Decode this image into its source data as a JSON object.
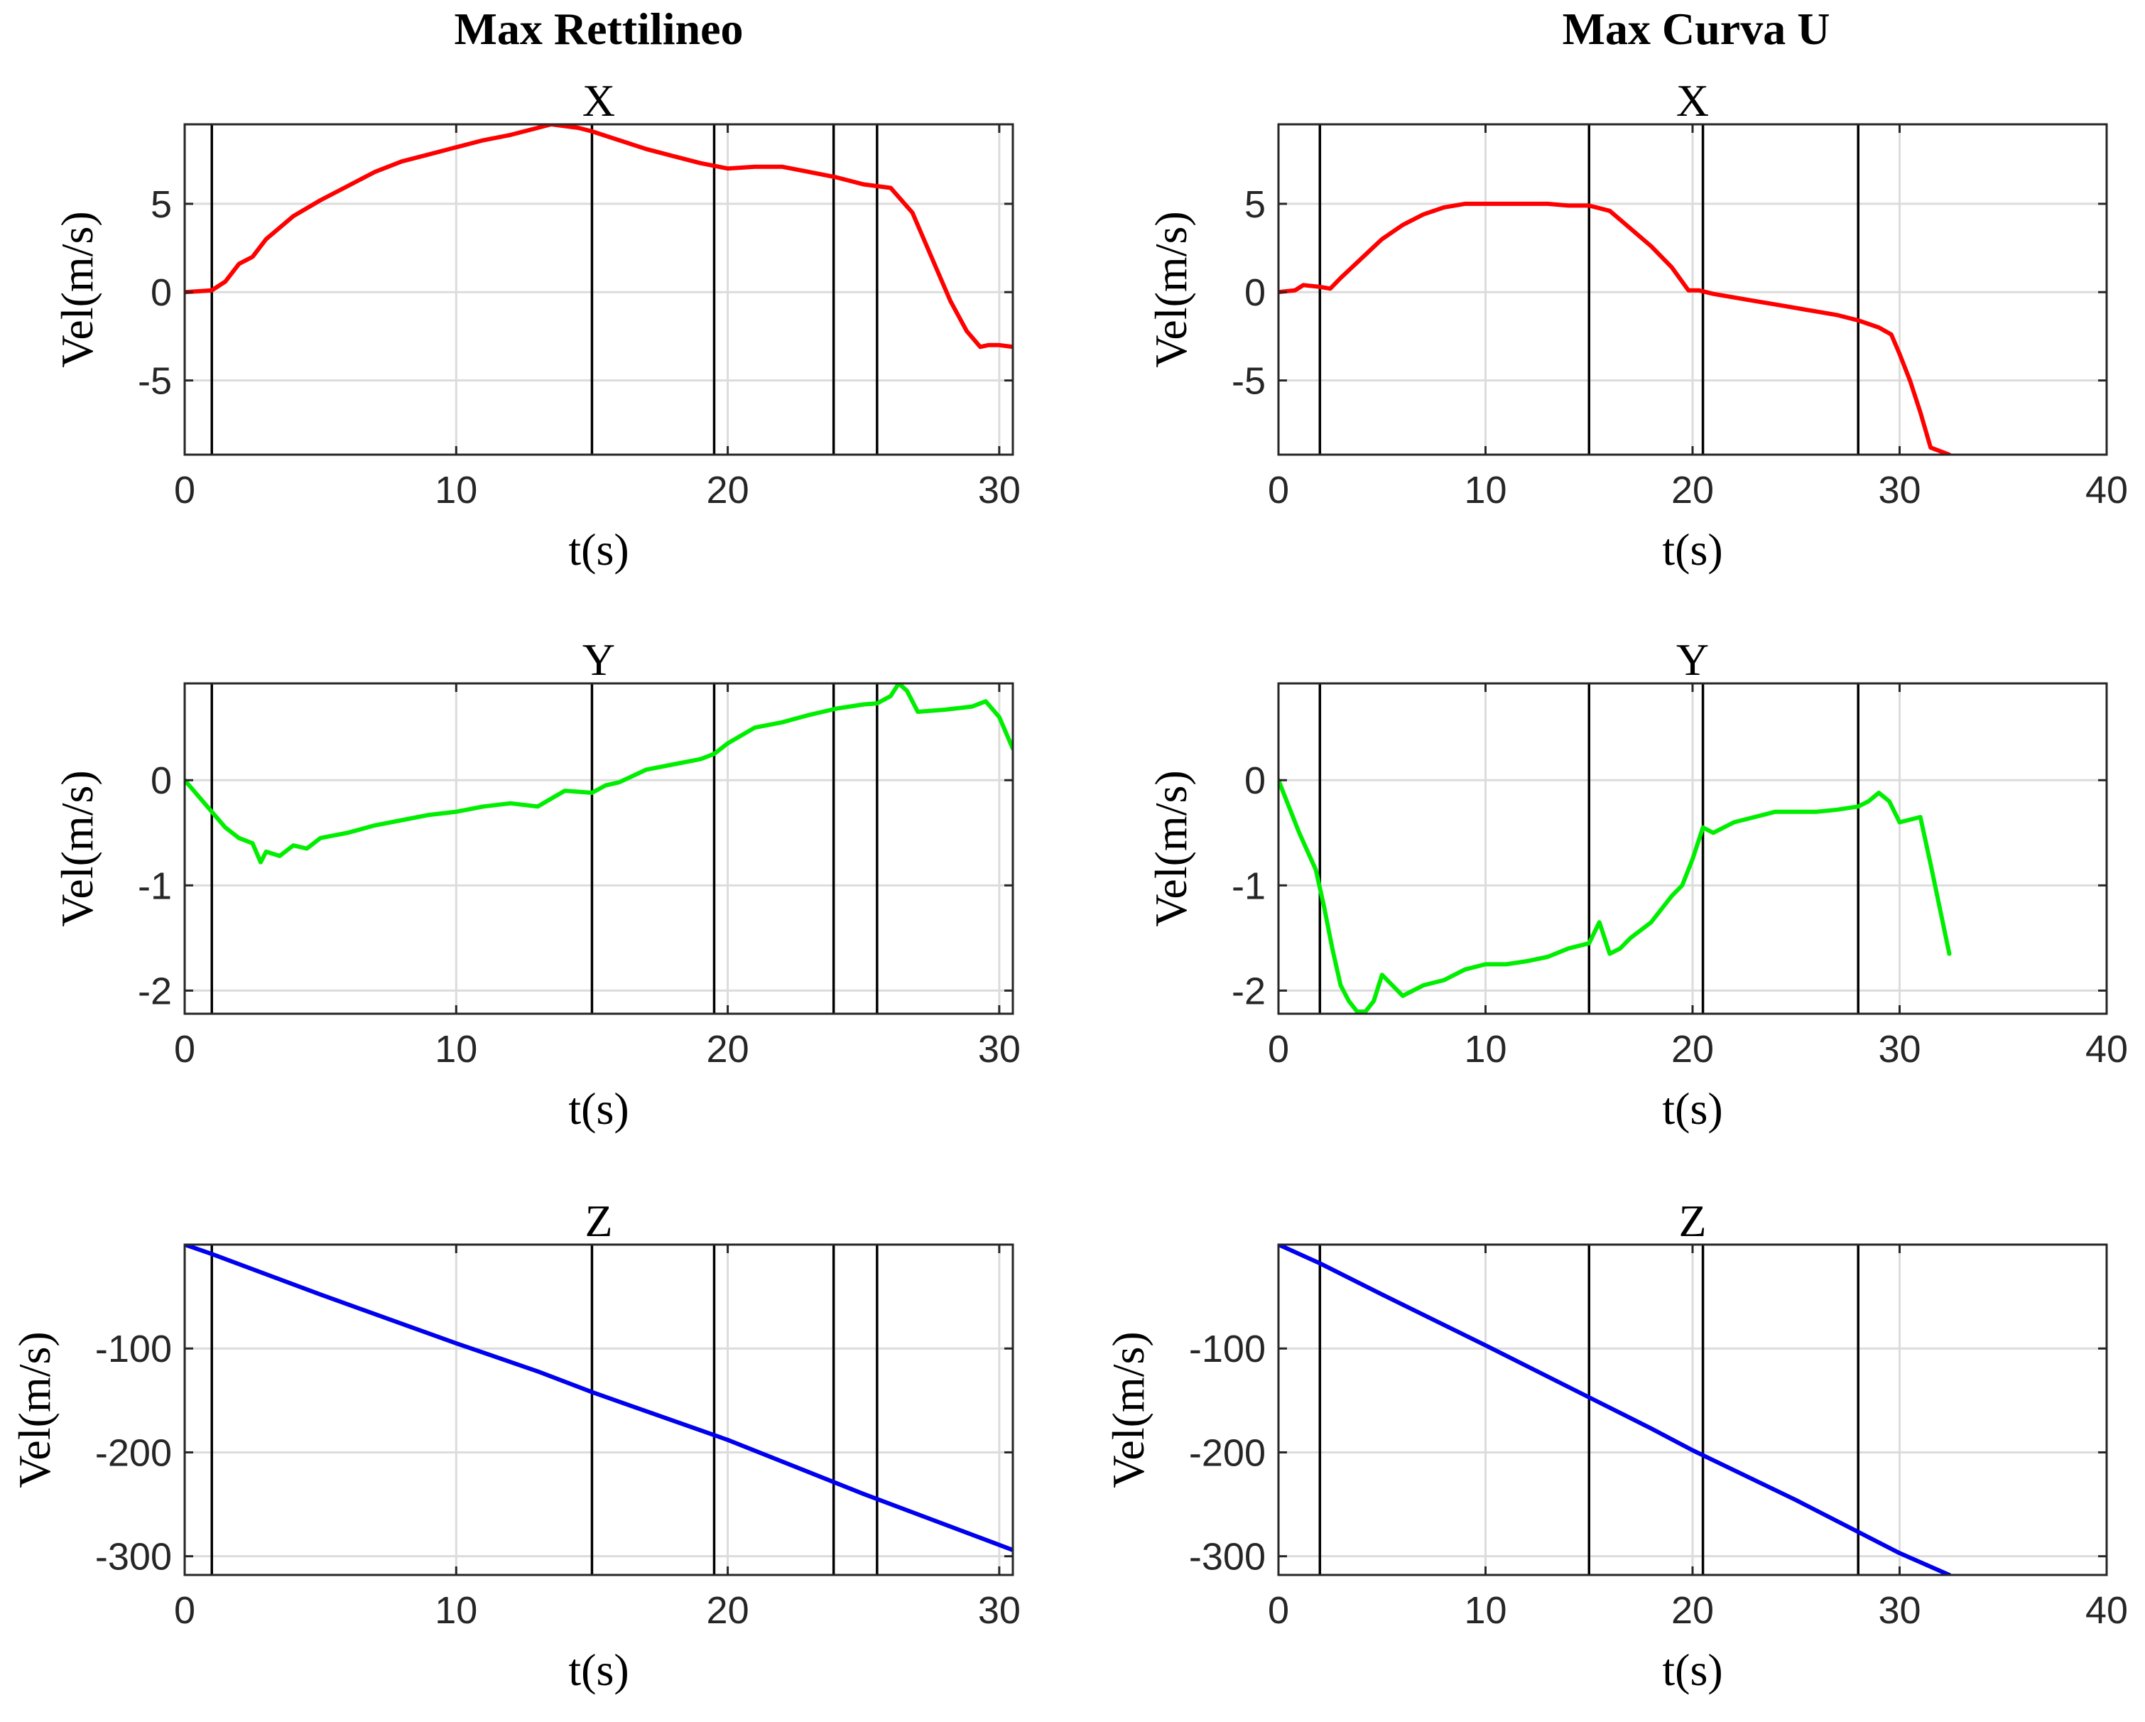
{
  "figure": {
    "column_titles": [
      "Max Rettilineo",
      "Max Curva U"
    ]
  },
  "chart_data": [
    {
      "type": "line",
      "column": 0,
      "row": 0,
      "title": "X",
      "xlabel": "t(s)",
      "ylabel": "Vel(m/s)",
      "xlim": [
        0,
        30.5
      ],
      "ylim": [
        -9.2,
        9.5
      ],
      "xticks": [
        0,
        10,
        20,
        30
      ],
      "yticks": [
        -5,
        0,
        5
      ],
      "xtick_labels": [
        "0",
        "10",
        "20",
        "30"
      ],
      "ytick_labels": [
        "-5",
        "0",
        "5"
      ],
      "vlines": [
        1,
        15,
        19.5,
        23.9,
        25.5
      ],
      "grid": true,
      "series": [
        {
          "color": "#ff0000",
          "x": [
            0,
            1,
            1.5,
            2,
            2.5,
            3,
            4,
            5,
            6,
            7,
            8,
            9,
            10,
            11,
            12,
            13,
            13.5,
            14.5,
            15,
            16,
            17,
            18,
            19,
            20,
            21,
            22,
            23,
            24,
            25,
            26,
            26.8,
            27.5,
            28.2,
            28.8,
            29.3,
            29.6,
            30,
            30.5
          ],
          "y": [
            0,
            0.1,
            0.6,
            1.6,
            2,
            3,
            4.3,
            5.2,
            6,
            6.8,
            7.4,
            7.8,
            8.2,
            8.6,
            8.9,
            9.3,
            9.5,
            9.3,
            9.1,
            8.6,
            8.1,
            7.7,
            7.3,
            7,
            7.1,
            7.1,
            6.8,
            6.5,
            6.1,
            5.9,
            4.5,
            2,
            -0.5,
            -2.2,
            -3.1,
            -3.0,
            -3.0,
            -3.1
          ]
        }
      ]
    },
    {
      "type": "line",
      "column": 1,
      "row": 0,
      "title": "X",
      "xlabel": "t(s)",
      "ylabel": "Vel(m/s)",
      "xlim": [
        0,
        40
      ],
      "ylim": [
        -9.2,
        9.5
      ],
      "xticks": [
        0,
        10,
        20,
        30,
        40
      ],
      "yticks": [
        -5,
        0,
        5
      ],
      "xtick_labels": [
        "0",
        "10",
        "20",
        "30",
        "40"
      ],
      "ytick_labels": [
        "-5",
        "0",
        "5"
      ],
      "vlines": [
        2,
        15,
        20.5,
        28
      ],
      "grid": true,
      "series": [
        {
          "color": "#ff0000",
          "x": [
            0,
            0.8,
            1.2,
            2,
            2.5,
            3,
            4,
            5,
            6,
            7,
            8,
            9,
            10,
            11,
            12,
            13,
            14,
            15,
            16,
            17,
            18,
            19,
            19.8,
            20.3,
            21,
            22,
            23,
            24,
            25,
            26,
            27,
            28,
            29,
            29.6,
            30,
            30.5,
            31,
            31.5,
            32.4
          ],
          "y": [
            0,
            0.1,
            0.4,
            0.3,
            0.2,
            0.8,
            1.9,
            3,
            3.8,
            4.4,
            4.8,
            5,
            5,
            5,
            5,
            5,
            4.9,
            4.9,
            4.6,
            3.6,
            2.6,
            1.4,
            0.1,
            0.1,
            -0.1,
            -0.3,
            -0.5,
            -0.7,
            -0.9,
            -1.1,
            -1.3,
            -1.6,
            -2,
            -2.4,
            -3.5,
            -5,
            -6.8,
            -8.8,
            -9.2
          ]
        }
      ]
    },
    {
      "type": "line",
      "column": 0,
      "row": 1,
      "title": "Y",
      "xlabel": "t(s)",
      "ylabel": "Vel(m/s)",
      "xlim": [
        0,
        30.5
      ],
      "ylim": [
        -2.22,
        0.92
      ],
      "xticks": [
        0,
        10,
        20,
        30
      ],
      "yticks": [
        -2,
        -1,
        0
      ],
      "xtick_labels": [
        "0",
        "10",
        "20",
        "30"
      ],
      "ytick_labels": [
        "-2",
        "-1",
        "0"
      ],
      "vlines": [
        1,
        15,
        19.5,
        23.9,
        25.5
      ],
      "grid": true,
      "series": [
        {
          "color": "#00ee00",
          "x": [
            0,
            1,
            1.5,
            2,
            2.5,
            2.8,
            3,
            3.5,
            4,
            4.5,
            5,
            6,
            7,
            8,
            9,
            10,
            11,
            12,
            13,
            14,
            15,
            15.5,
            16,
            17,
            18,
            19,
            19.5,
            20,
            21,
            22,
            23,
            24,
            25,
            25.5,
            26,
            26.3,
            26.6,
            27,
            28,
            29,
            29.5,
            30,
            30.5
          ],
          "y": [
            0,
            -0.3,
            -0.45,
            -0.55,
            -0.6,
            -0.78,
            -0.68,
            -0.72,
            -0.62,
            -0.65,
            -0.55,
            -0.5,
            -0.43,
            -0.38,
            -0.33,
            -0.3,
            -0.25,
            -0.22,
            -0.25,
            -0.1,
            -0.12,
            -0.05,
            -0.02,
            0.1,
            0.15,
            0.2,
            0.25,
            0.35,
            0.5,
            0.55,
            0.62,
            0.68,
            0.72,
            0.73,
            0.8,
            0.92,
            0.85,
            0.65,
            0.67,
            0.7,
            0.75,
            0.6,
            0.3
          ]
        }
      ]
    },
    {
      "type": "line",
      "column": 1,
      "row": 1,
      "title": "Y",
      "xlabel": "t(s)",
      "ylabel": "Vel(m/s)",
      "xlim": [
        0,
        40
      ],
      "ylim": [
        -2.22,
        0.92
      ],
      "xticks": [
        0,
        10,
        20,
        30,
        40
      ],
      "yticks": [
        -2,
        -1,
        0
      ],
      "xtick_labels": [
        "0",
        "10",
        "20",
        "30",
        "40"
      ],
      "ytick_labels": [
        "-2",
        "-1",
        "0"
      ],
      "vlines": [
        2,
        15,
        20.5,
        28
      ],
      "grid": true,
      "series": [
        {
          "color": "#00ee00",
          "x": [
            0,
            1,
            1.8,
            2.2,
            2.6,
            3,
            3.4,
            3.8,
            4.2,
            4.6,
            5,
            6,
            7,
            8,
            9,
            10,
            11,
            12,
            13,
            14,
            15,
            15.5,
            16,
            16.5,
            17,
            18,
            19,
            19.5,
            20,
            20.5,
            21,
            22,
            23,
            24,
            25,
            26,
            27,
            28,
            28.5,
            29,
            29.5,
            30,
            31,
            31.5,
            32.4
          ],
          "y": [
            0,
            -0.5,
            -0.85,
            -1.2,
            -1.6,
            -1.95,
            -2.1,
            -2.2,
            -2.2,
            -2.1,
            -1.85,
            -2.05,
            -1.95,
            -1.9,
            -1.8,
            -1.75,
            -1.75,
            -1.72,
            -1.68,
            -1.6,
            -1.55,
            -1.35,
            -1.65,
            -1.6,
            -1.5,
            -1.35,
            -1.1,
            -1.0,
            -0.75,
            -0.45,
            -0.5,
            -0.4,
            -0.35,
            -0.3,
            -0.3,
            -0.3,
            -0.28,
            -0.25,
            -0.2,
            -0.12,
            -0.2,
            -0.4,
            -0.35,
            -0.8,
            -1.65
          ]
        }
      ]
    },
    {
      "type": "line",
      "column": 0,
      "row": 2,
      "title": "Z",
      "xlabel": "t(s)",
      "ylabel": "Vel(m/s)",
      "xlim": [
        0,
        30.5
      ],
      "ylim": [
        -318,
        0
      ],
      "xticks": [
        0,
        10,
        20,
        30
      ],
      "yticks": [
        -300,
        -200,
        -100
      ],
      "xtick_labels": [
        "0",
        "10",
        "20",
        "30"
      ],
      "ytick_labels": [
        "-300",
        "-200",
        "-100"
      ],
      "vlines": [
        1,
        15,
        19.5,
        23.9,
        25.5
      ],
      "grid": true,
      "series": [
        {
          "color": "#0000ee",
          "x": [
            0,
            1,
            5,
            10,
            13,
            15,
            20,
            25,
            30.5
          ],
          "y": [
            0,
            -9,
            -48,
            -95,
            -122,
            -142,
            -188,
            -240,
            -294
          ]
        }
      ]
    },
    {
      "type": "line",
      "column": 1,
      "row": 2,
      "title": "Z",
      "xlabel": "t(s)",
      "ylabel": "Vel(m/s)",
      "xlim": [
        0,
        40
      ],
      "ylim": [
        -318,
        0
      ],
      "xticks": [
        0,
        10,
        20,
        30,
        40
      ],
      "yticks": [
        -300,
        -200,
        -100
      ],
      "xtick_labels": [
        "0",
        "10",
        "20",
        "30",
        "40"
      ],
      "ytick_labels": [
        "-300",
        "-200",
        "-100"
      ],
      "vlines": [
        2,
        15,
        20.5,
        28
      ],
      "grid": true,
      "series": [
        {
          "color": "#0000ee",
          "x": [
            0,
            2,
            5,
            10,
            15,
            18,
            20,
            25,
            30,
            32.4
          ],
          "y": [
            0,
            -18,
            -48,
            -97,
            -147,
            -177,
            -198,
            -246,
            -297,
            -318
          ]
        }
      ]
    }
  ]
}
